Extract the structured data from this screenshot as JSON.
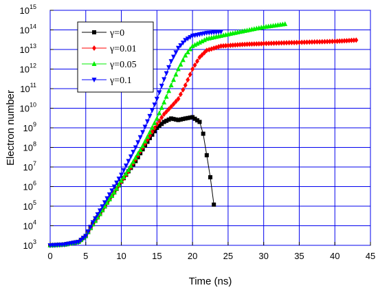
{
  "chart_data": {
    "type": "line",
    "title": "",
    "xlabel": "Time (ns)",
    "ylabel": "Electron number",
    "xlim": [
      0,
      45
    ],
    "ylim_log10": [
      3,
      15
    ],
    "y_scale": "log",
    "grid": true,
    "legend_position": "top-left",
    "x_ticks": [
      "0",
      "5",
      "10",
      "15",
      "20",
      "25",
      "30",
      "35",
      "40",
      "45"
    ],
    "y_ticks": [
      {
        "base": "10",
        "exp": "3"
      },
      {
        "base": "10",
        "exp": "4"
      },
      {
        "base": "10",
        "exp": "5"
      },
      {
        "base": "10",
        "exp": "6"
      },
      {
        "base": "10",
        "exp": "7"
      },
      {
        "base": "10",
        "exp": "8"
      },
      {
        "base": "10",
        "exp": "9"
      },
      {
        "base": "10",
        "exp": "10"
      },
      {
        "base": "10",
        "exp": "11"
      },
      {
        "base": "10",
        "exp": "12"
      },
      {
        "base": "10",
        "exp": "13"
      },
      {
        "base": "10",
        "exp": "14"
      },
      {
        "base": "10",
        "exp": "15"
      }
    ],
    "series": [
      {
        "name": "γ=0",
        "color": "#000000",
        "marker": "square",
        "points": [
          [
            0,
            1000.0
          ],
          [
            2,
            1100.0
          ],
          [
            4,
            1500.0
          ],
          [
            5,
            3000.0
          ],
          [
            6,
            12000.0
          ],
          [
            7,
            40000.0
          ],
          [
            8,
            150000.0
          ],
          [
            9,
            500000.0
          ],
          [
            10,
            1800000.0
          ],
          [
            11,
            6000000.0
          ],
          [
            12,
            20000000.0
          ],
          [
            13,
            80000000.0
          ],
          [
            14,
            300000000.0
          ],
          [
            15,
            1000000000.0
          ],
          [
            16,
            2000000000.0
          ],
          [
            17,
            3000000000.0
          ],
          [
            18,
            2500000000.0
          ],
          [
            19,
            3000000000.0
          ],
          [
            20,
            3500000000.0
          ],
          [
            21,
            2000000000.0
          ],
          [
            21.5,
            500000000.0
          ],
          [
            22,
            40000000.0
          ],
          [
            22.5,
            3000000.0
          ],
          [
            23,
            120000.0
          ]
        ]
      },
      {
        "name": "γ=0.01",
        "color": "#ff0000",
        "marker": "diamond",
        "points": [
          [
            0,
            1000.0
          ],
          [
            2,
            1100.0
          ],
          [
            4,
            1500.0
          ],
          [
            5,
            3000.0
          ],
          [
            6,
            12000.0
          ],
          [
            7,
            40000.0
          ],
          [
            8,
            150000.0
          ],
          [
            9,
            500000.0
          ],
          [
            10,
            1800000.0
          ],
          [
            11,
            6000000.0
          ],
          [
            12,
            25000000.0
          ],
          [
            13,
            100000000.0
          ],
          [
            14,
            400000000.0
          ],
          [
            15,
            1500000000.0
          ],
          [
            16,
            5000000000.0
          ],
          [
            17,
            12000000000.0
          ],
          [
            18,
            30000000000.0
          ],
          [
            19,
            150000000000.0
          ],
          [
            20,
            1000000000000.0
          ],
          [
            21,
            4000000000000.0
          ],
          [
            22,
            9000000000000.0
          ],
          [
            24,
            15000000000000.0
          ],
          [
            27,
            18000000000000.0
          ],
          [
            30,
            20000000000000.0
          ],
          [
            35,
            23000000000000.0
          ],
          [
            40,
            26000000000000.0
          ],
          [
            43,
            30000000000000.0
          ]
        ]
      },
      {
        "name": "γ=0.05",
        "color": "#00ee00",
        "marker": "triangle-up",
        "points": [
          [
            0,
            1000.0
          ],
          [
            2,
            1100.0
          ],
          [
            4,
            1500.0
          ],
          [
            5,
            3000.0
          ],
          [
            6,
            12000.0
          ],
          [
            7,
            40000.0
          ],
          [
            8,
            150000.0
          ],
          [
            9,
            500000.0
          ],
          [
            10,
            2000000.0
          ],
          [
            11,
            7000000.0
          ],
          [
            12,
            30000000.0
          ],
          [
            13,
            120000000.0
          ],
          [
            14,
            600000000.0
          ],
          [
            15,
            3000000000.0
          ],
          [
            16,
            20000000000.0
          ],
          [
            17,
            150000000000.0
          ],
          [
            18,
            1000000000000.0
          ],
          [
            19,
            5000000000000.0
          ],
          [
            20,
            15000000000000.0
          ],
          [
            22,
            35000000000000.0
          ],
          [
            25,
            60000000000000.0
          ],
          [
            28,
            100000000000000.0
          ],
          [
            30,
            140000000000000.0
          ],
          [
            33,
            200000000000000.0
          ]
        ]
      },
      {
        "name": "γ=0.1",
        "color": "#0000ff",
        "marker": "triangle-down",
        "points": [
          [
            0,
            1000.0
          ],
          [
            2,
            1100.0
          ],
          [
            4,
            1500.0
          ],
          [
            5,
            3000.0
          ],
          [
            6,
            15000.0
          ],
          [
            7,
            60000.0
          ],
          [
            8,
            250000.0
          ],
          [
            9,
            1000000.0
          ],
          [
            10,
            4000000.0
          ],
          [
            11,
            20000000.0
          ],
          [
            12,
            100000000.0
          ],
          [
            13,
            600000000.0
          ],
          [
            14,
            4000000000.0
          ],
          [
            15,
            30000000000.0
          ],
          [
            16,
            300000000000.0
          ],
          [
            17,
            2500000000000.0
          ],
          [
            18,
            12000000000000.0
          ],
          [
            19,
            30000000000000.0
          ],
          [
            20,
            50000000000000.0
          ],
          [
            22,
            70000000000000.0
          ],
          [
            24,
            80000000000000.0
          ]
        ]
      }
    ]
  }
}
